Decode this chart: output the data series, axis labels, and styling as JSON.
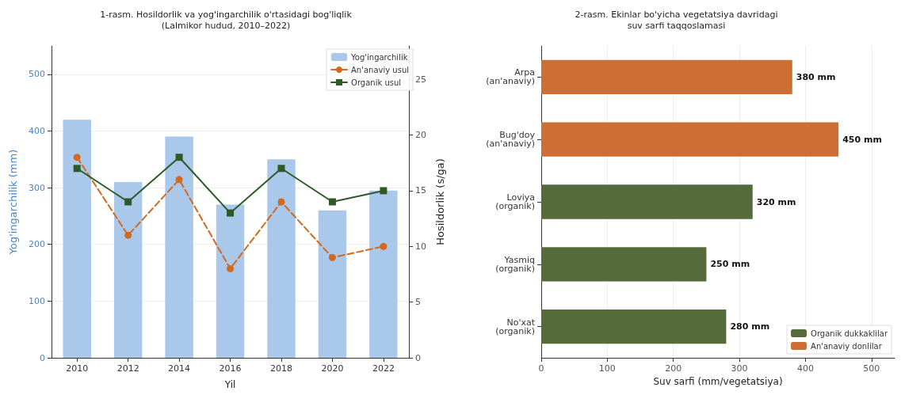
{
  "chart_data": [
    {
      "type": "bar",
      "title": "1-rasm. Hosildorlik va yog'ingarchilik o'rtasidagi bog'liqlik\n(Lalmikor hudud, 2010–2022)",
      "xlabel": "Yil",
      "ylabel": "Yog'ingarchilik (mm)",
      "y2label": "Hosildorlik (s/ga)",
      "categories": [
        "2010",
        "2012",
        "2014",
        "2016",
        "2018",
        "2020",
        "2022"
      ],
      "series": [
        {
          "name": "Yog'ingarchilik",
          "type": "bar",
          "color": "#a9c8ea",
          "values": [
            420,
            310,
            390,
            270,
            350,
            260,
            295
          ]
        },
        {
          "name": "An'anaviy usul",
          "type": "line",
          "axis": "y2",
          "color": "#d2691e",
          "marker": "circle",
          "line_style": "dashed",
          "values": [
            18,
            11,
            16,
            8,
            14,
            9,
            10
          ]
        },
        {
          "name": "Organik usul",
          "type": "line",
          "axis": "y2",
          "color": "#2f5a27",
          "marker": "square",
          "line_style": "solid",
          "values": [
            17,
            14,
            18,
            13,
            17,
            14,
            15
          ]
        }
      ],
      "ylim": [
        0,
        550
      ],
      "yticks": [
        0,
        100,
        200,
        300,
        400,
        500
      ],
      "y2lim": [
        0,
        28
      ],
      "y2ticks": [
        0,
        5,
        10,
        15,
        20,
        25
      ],
      "grid": "y",
      "legend": "top right"
    },
    {
      "type": "bar",
      "title": "2-rasm. Ekinlar bo'yicha vegetatsiya davridagi\nsuv sarfi taqqoslamasi",
      "xlabel": "Suv sarfi (mm/vegetatsiya)",
      "orientation": "horizontal",
      "stacked": true,
      "categories": [
        "Arpa\n(an'anaviy)",
        "Bug'doy\n(an'anaviy)",
        "Loviya\n(organik)",
        "Yasmiq\n(organik)",
        "No'xat\n(organik)"
      ],
      "series": [
        {
          "name": "Organik dukkaklilar",
          "color": "#556b3b",
          "values": [
            null,
            null,
            320,
            250,
            280
          ],
          "value_labels": [
            null,
            null,
            "320 mm",
            "250 mm",
            "280 mm"
          ]
        },
        {
          "name": "An'anaviy donlilar",
          "color": "#cd6f34",
          "values": [
            380,
            450,
            null,
            null,
            null
          ],
          "value_labels": [
            "380 mm",
            "450 mm",
            null,
            null,
            null
          ]
        }
      ],
      "xlim": [
        0,
        535
      ],
      "xticks": [
        0,
        100,
        200,
        300,
        400,
        500
      ],
      "grid": "x",
      "legend": "bottom right"
    }
  ]
}
